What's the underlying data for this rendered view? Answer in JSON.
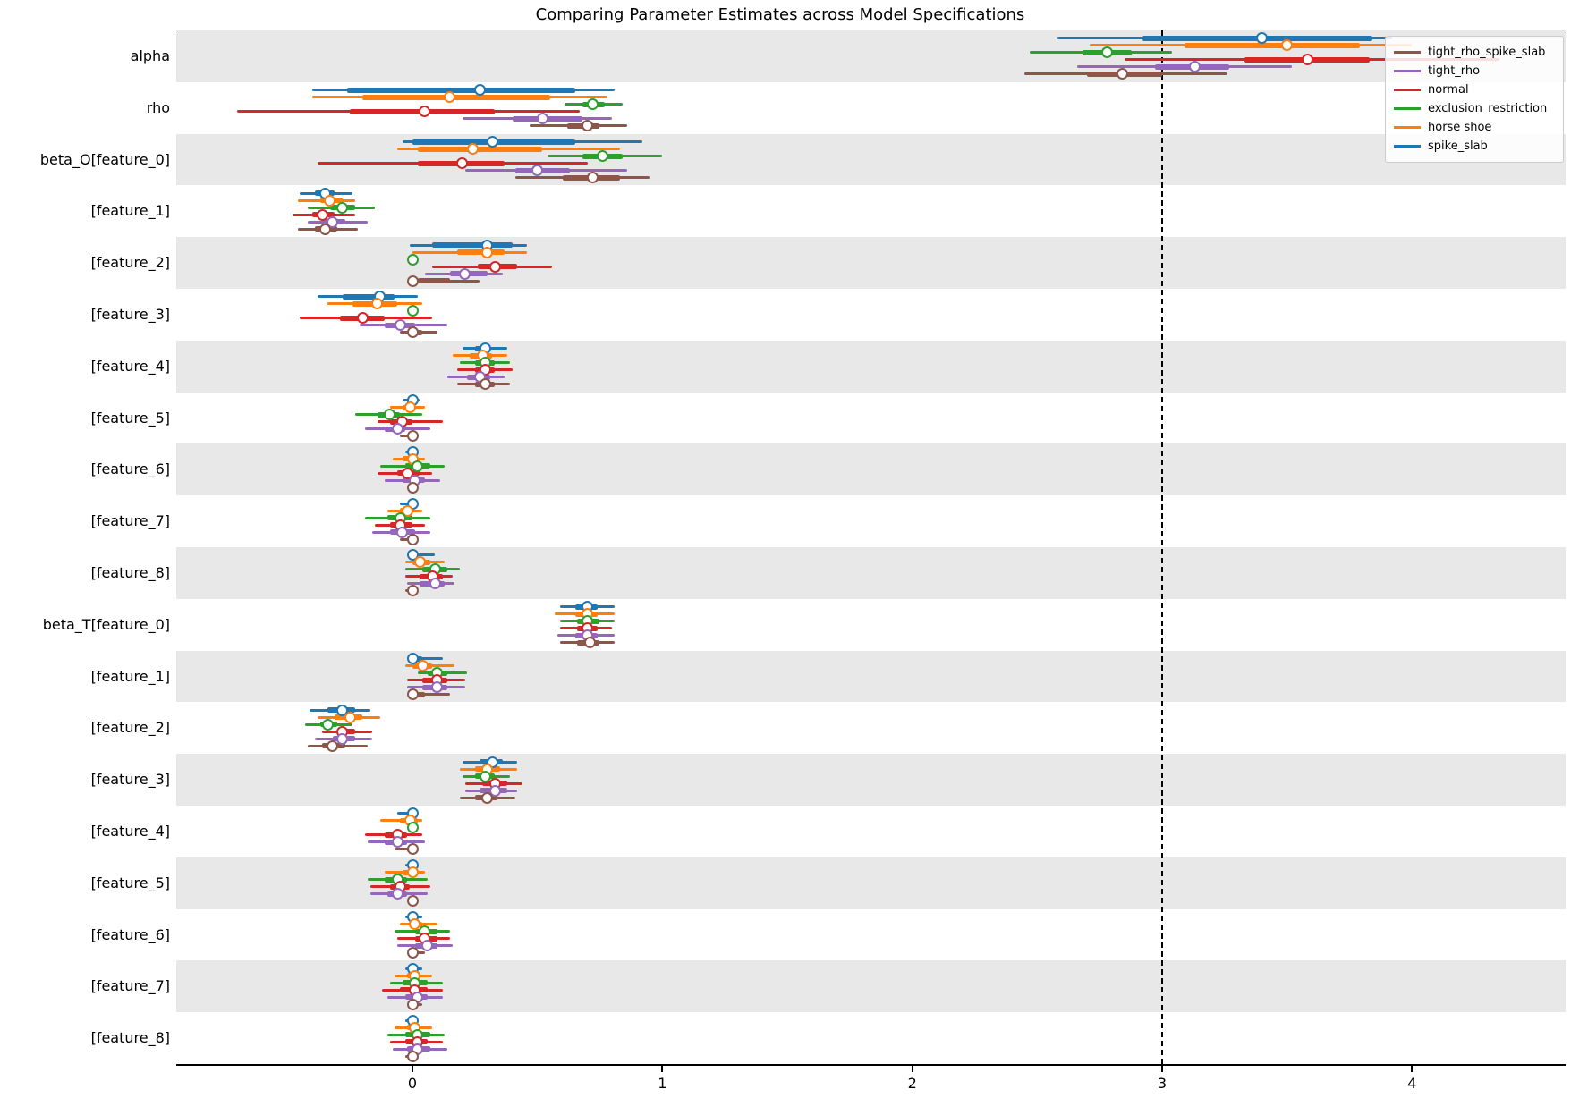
{
  "chart_data": {
    "type": "forest",
    "title": "Comparing Parameter Estimates across Model Specifications",
    "x_ticks": [
      0,
      1,
      2,
      3,
      4
    ],
    "x_range": [
      -0.95,
      4.6
    ],
    "reference_line_x": 3,
    "row_shading": "alternating",
    "band_color": "#e8e8e8",
    "grid": false,
    "legend_position": "upper right",
    "interval_format": [
      "ci_low",
      "hdi_low",
      "point",
      "hdi_high",
      "ci_high"
    ],
    "models": [
      {
        "name": "spike_slab",
        "color": "#1f77b4"
      },
      {
        "name": "horse shoe",
        "color": "#ff7f0e"
      },
      {
        "name": "exclusion_restriction",
        "color": "#2ca02c"
      },
      {
        "name": "normal",
        "color": "#d62728"
      },
      {
        "name": "tight_rho",
        "color": "#9467bd"
      },
      {
        "name": "tight_rho_spike_slab",
        "color": "#8c564b"
      }
    ],
    "legend_entries": [
      "tight_rho_spike_slab",
      "tight_rho",
      "normal",
      "exclusion_restriction",
      "horse shoe",
      "spike_slab"
    ],
    "rows": [
      {
        "label": "alpha",
        "intervals": [
          [
            2.58,
            2.92,
            3.4,
            3.84,
            3.92
          ],
          [
            2.71,
            3.09,
            3.5,
            3.79,
            4.0
          ],
          [
            2.47,
            2.68,
            2.78,
            2.88,
            3.04
          ],
          [
            2.85,
            3.33,
            3.58,
            3.83,
            4.35
          ],
          [
            2.66,
            2.97,
            3.13,
            3.27,
            3.52
          ],
          [
            2.45,
            2.7,
            2.84,
            3.0,
            3.26
          ]
        ]
      },
      {
        "label": "rho",
        "intervals": [
          [
            -0.4,
            -0.26,
            0.27,
            0.65,
            0.81
          ],
          [
            -0.4,
            -0.2,
            0.15,
            0.55,
            0.78
          ],
          [
            0.61,
            0.68,
            0.72,
            0.77,
            0.84
          ],
          [
            -0.7,
            -0.25,
            0.05,
            0.33,
            0.67
          ],
          [
            0.2,
            0.4,
            0.52,
            0.68,
            0.8
          ],
          [
            0.47,
            0.62,
            0.7,
            0.75,
            0.86
          ]
        ]
      },
      {
        "label": "beta_O[feature_0]",
        "intervals": [
          [
            -0.04,
            0.0,
            0.32,
            0.65,
            0.92
          ],
          [
            -0.06,
            0.02,
            0.24,
            0.52,
            0.83
          ],
          [
            0.54,
            0.68,
            0.76,
            0.84,
            1.0
          ],
          [
            -0.38,
            0.02,
            0.2,
            0.37,
            0.7
          ],
          [
            0.21,
            0.41,
            0.5,
            0.63,
            0.86
          ],
          [
            0.41,
            0.6,
            0.72,
            0.83,
            0.95
          ]
        ]
      },
      {
        "label": "[feature_1]",
        "intervals": [
          [
            -0.45,
            -0.39,
            -0.35,
            -0.31,
            -0.24
          ],
          [
            -0.46,
            -0.37,
            -0.33,
            -0.28,
            -0.23
          ],
          [
            -0.42,
            -0.33,
            -0.28,
            -0.23,
            -0.15
          ],
          [
            -0.48,
            -0.4,
            -0.36,
            -0.31,
            -0.23
          ],
          [
            -0.42,
            -0.36,
            -0.32,
            -0.27,
            -0.18
          ],
          [
            -0.46,
            -0.39,
            -0.35,
            -0.3,
            -0.22
          ]
        ]
      },
      {
        "label": "[feature_2]",
        "intervals": [
          [
            -0.01,
            0.08,
            0.3,
            0.4,
            0.46
          ],
          [
            0.0,
            0.18,
            0.3,
            0.37,
            0.46
          ],
          [
            null,
            null,
            0.0,
            null,
            null
          ],
          [
            0.08,
            0.26,
            0.33,
            0.42,
            0.56
          ],
          [
            0.05,
            0.15,
            0.21,
            0.3,
            0.36
          ],
          [
            0.0,
            0.02,
            0.0,
            0.15,
            0.27
          ]
        ]
      },
      {
        "label": "[feature_3]",
        "intervals": [
          [
            -0.38,
            -0.28,
            -0.13,
            -0.07,
            0.02
          ],
          [
            -0.34,
            -0.24,
            -0.14,
            -0.06,
            0.04
          ],
          [
            null,
            null,
            0.0,
            null,
            null
          ],
          [
            -0.45,
            -0.29,
            -0.2,
            -0.11,
            0.08
          ],
          [
            -0.21,
            -0.11,
            -0.05,
            0.01,
            0.14
          ],
          [
            -0.05,
            -0.01,
            0.0,
            0.04,
            0.1
          ]
        ]
      },
      {
        "label": "[feature_4]",
        "intervals": [
          [
            0.2,
            0.25,
            0.29,
            0.31,
            0.38
          ],
          [
            0.16,
            0.23,
            0.28,
            0.32,
            0.38
          ],
          [
            0.19,
            0.25,
            0.29,
            0.33,
            0.39
          ],
          [
            0.18,
            0.25,
            0.29,
            0.33,
            0.4
          ],
          [
            0.14,
            0.22,
            0.27,
            0.31,
            0.37
          ],
          [
            0.18,
            0.25,
            0.29,
            0.33,
            0.39
          ]
        ]
      },
      {
        "label": "[feature_5]",
        "intervals": [
          [
            -0.04,
            -0.02,
            0.0,
            0.01,
            0.03
          ],
          [
            -0.09,
            -0.04,
            -0.01,
            0.01,
            0.05
          ],
          [
            -0.23,
            -0.14,
            -0.09,
            -0.05,
            0.04
          ],
          [
            -0.14,
            -0.09,
            -0.04,
            0.0,
            0.12
          ],
          [
            -0.19,
            -0.11,
            -0.06,
            -0.03,
            0.07
          ],
          [
            -0.05,
            -0.01,
            0.0,
            0.0,
            0.01
          ]
        ]
      },
      {
        "label": "[feature_6]",
        "intervals": [
          [
            -0.03,
            -0.01,
            0.0,
            0.01,
            0.02
          ],
          [
            -0.08,
            -0.04,
            0.0,
            0.02,
            0.05
          ],
          [
            -0.13,
            -0.03,
            0.02,
            0.07,
            0.13
          ],
          [
            -0.14,
            -0.06,
            -0.02,
            0.03,
            0.08
          ],
          [
            -0.11,
            -0.04,
            0.01,
            0.05,
            0.11
          ],
          [
            -0.02,
            -0.01,
            0.0,
            0.0,
            0.01
          ]
        ]
      },
      {
        "label": "[feature_7]",
        "intervals": [
          [
            -0.05,
            -0.01,
            0.0,
            0.01,
            0.02
          ],
          [
            -0.1,
            -0.05,
            -0.02,
            0.0,
            0.04
          ],
          [
            -0.19,
            -0.1,
            -0.05,
            0.0,
            0.07
          ],
          [
            -0.15,
            -0.09,
            -0.05,
            0.0,
            0.05
          ],
          [
            -0.16,
            -0.09,
            -0.04,
            0.01,
            0.07
          ],
          [
            -0.05,
            -0.02,
            0.0,
            0.0,
            0.01
          ]
        ]
      },
      {
        "label": "[feature_8]",
        "intervals": [
          [
            0.0,
            0.0,
            0.0,
            0.02,
            0.09
          ],
          [
            -0.03,
            0.0,
            0.03,
            0.07,
            0.13
          ],
          [
            -0.03,
            0.04,
            0.09,
            0.14,
            0.19
          ],
          [
            -0.03,
            0.03,
            0.08,
            0.12,
            0.16
          ],
          [
            -0.02,
            0.03,
            0.09,
            0.13,
            0.17
          ],
          [
            -0.03,
            -0.01,
            0.0,
            0.0,
            0.01
          ]
        ]
      },
      {
        "label": "beta_T[feature_0]",
        "intervals": [
          [
            0.59,
            0.65,
            0.7,
            0.74,
            0.81
          ],
          [
            0.57,
            0.65,
            0.7,
            0.74,
            0.81
          ],
          [
            0.59,
            0.66,
            0.7,
            0.75,
            0.81
          ],
          [
            0.59,
            0.66,
            0.7,
            0.74,
            0.8
          ],
          [
            0.58,
            0.65,
            0.7,
            0.74,
            0.81
          ],
          [
            0.59,
            0.66,
            0.71,
            0.75,
            0.81
          ]
        ]
      },
      {
        "label": "[feature_1]",
        "intervals": [
          [
            -0.02,
            0.0,
            0.0,
            0.04,
            0.12
          ],
          [
            -0.03,
            0.0,
            0.04,
            0.08,
            0.17
          ],
          [
            0.02,
            0.06,
            0.1,
            0.14,
            0.22
          ],
          [
            -0.02,
            0.04,
            0.1,
            0.14,
            0.21
          ],
          [
            -0.02,
            0.04,
            0.1,
            0.14,
            0.21
          ],
          [
            0.0,
            0.0,
            0.0,
            0.05,
            0.15
          ]
        ]
      },
      {
        "label": "[feature_2]",
        "intervals": [
          [
            -0.41,
            -0.34,
            -0.28,
            -0.23,
            -0.17
          ],
          [
            -0.38,
            -0.31,
            -0.25,
            -0.2,
            -0.13
          ],
          [
            -0.43,
            -0.37,
            -0.34,
            -0.3,
            -0.24
          ],
          [
            -0.36,
            -0.29,
            -0.28,
            -0.23,
            -0.16
          ],
          [
            -0.39,
            -0.32,
            -0.28,
            -0.23,
            -0.16
          ],
          [
            -0.42,
            -0.36,
            -0.32,
            -0.27,
            -0.18
          ]
        ]
      },
      {
        "label": "[feature_3]",
        "intervals": [
          [
            0.2,
            0.27,
            0.32,
            0.36,
            0.42
          ],
          [
            0.19,
            0.25,
            0.3,
            0.35,
            0.42
          ],
          [
            0.2,
            0.25,
            0.29,
            0.33,
            0.39
          ],
          [
            0.21,
            0.28,
            0.33,
            0.38,
            0.44
          ],
          [
            0.21,
            0.27,
            0.33,
            0.38,
            0.42
          ],
          [
            0.19,
            0.25,
            0.3,
            0.34,
            0.41
          ]
        ]
      },
      {
        "label": "[feature_4]",
        "intervals": [
          [
            -0.06,
            -0.01,
            0.0,
            0.0,
            0.01
          ],
          [
            -0.13,
            -0.05,
            -0.01,
            0.02,
            0.04
          ],
          [
            null,
            null,
            0.0,
            null,
            null
          ],
          [
            -0.19,
            -0.11,
            -0.06,
            -0.02,
            0.04
          ],
          [
            -0.18,
            -0.11,
            -0.06,
            -0.02,
            0.05
          ],
          [
            -0.07,
            -0.02,
            0.0,
            0.0,
            0.01
          ]
        ]
      },
      {
        "label": "[feature_5]",
        "intervals": [
          [
            -0.03,
            -0.01,
            0.0,
            0.01,
            0.02
          ],
          [
            -0.11,
            -0.04,
            0.0,
            0.02,
            0.05
          ],
          [
            -0.18,
            -0.11,
            -0.06,
            -0.02,
            0.06
          ],
          [
            -0.17,
            -0.09,
            -0.05,
            -0.01,
            0.07
          ],
          [
            -0.17,
            -0.1,
            -0.06,
            -0.02,
            0.06
          ],
          [
            -0.01,
            0.0,
            0.0,
            0.0,
            0.01
          ]
        ]
      },
      {
        "label": "[feature_6]",
        "intervals": [
          [
            -0.03,
            0.0,
            0.0,
            0.01,
            0.04
          ],
          [
            -0.05,
            0.0,
            0.01,
            0.04,
            0.1
          ],
          [
            -0.07,
            0.01,
            0.05,
            0.1,
            0.15
          ],
          [
            -0.06,
            0.01,
            0.05,
            0.1,
            0.15
          ],
          [
            -0.06,
            0.01,
            0.06,
            0.1,
            0.16
          ],
          [
            0.0,
            0.0,
            0.0,
            0.01,
            0.05
          ]
        ]
      },
      {
        "label": "[feature_7]",
        "intervals": [
          [
            -0.03,
            0.0,
            0.0,
            0.01,
            0.04
          ],
          [
            -0.07,
            -0.02,
            0.01,
            0.03,
            0.08
          ],
          [
            -0.09,
            -0.04,
            0.01,
            0.06,
            0.12
          ],
          [
            -0.12,
            -0.05,
            0.01,
            0.06,
            0.12
          ],
          [
            -0.1,
            -0.03,
            0.02,
            0.06,
            0.12
          ],
          [
            -0.01,
            0.0,
            0.0,
            0.01,
            0.04
          ]
        ]
      },
      {
        "label": "[feature_8]",
        "intervals": [
          [
            -0.03,
            -0.01,
            0.0,
            0.01,
            0.02
          ],
          [
            -0.07,
            -0.02,
            0.01,
            0.03,
            0.08
          ],
          [
            -0.1,
            -0.03,
            0.02,
            0.07,
            0.13
          ],
          [
            -0.09,
            -0.03,
            0.02,
            0.06,
            0.12
          ],
          [
            -0.08,
            -0.02,
            0.02,
            0.07,
            0.14
          ],
          [
            -0.03,
            -0.01,
            0.0,
            0.0,
            0.01
          ]
        ]
      }
    ]
  }
}
